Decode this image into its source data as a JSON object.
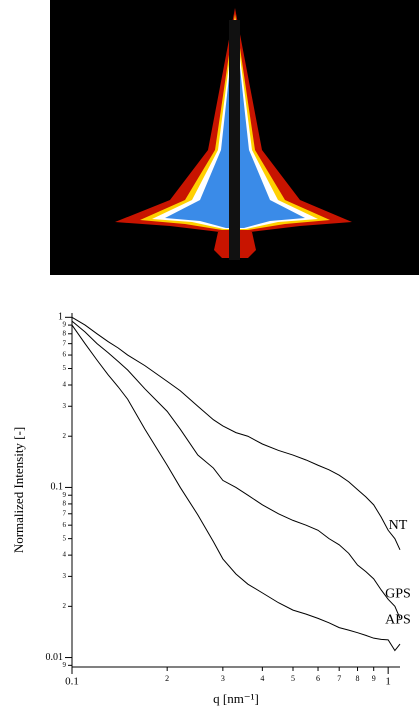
{
  "chart_data": {
    "type": "line",
    "log_x": true,
    "log_y": true,
    "x_label": "q  [nm⁻¹]",
    "y_label": "Normalized Intensity  [-]",
    "x": [
      0.1,
      0.11,
      0.12,
      0.13,
      0.14,
      0.15,
      0.17,
      0.2,
      0.22,
      0.25,
      0.28,
      0.3,
      0.33,
      0.36,
      0.4,
      0.45,
      0.5,
      0.55,
      0.6,
      0.65,
      0.7,
      0.75,
      0.8,
      0.85,
      0.9,
      0.95,
      1.0,
      1.05,
      1.09
    ],
    "series": [
      {
        "name": "NT",
        "color": "#000000",
        "values": [
          1.0,
          0.9,
          0.8,
          0.72,
          0.66,
          0.6,
          0.52,
          0.42,
          0.37,
          0.3,
          0.25,
          0.23,
          0.21,
          0.2,
          0.18,
          0.165,
          0.155,
          0.145,
          0.135,
          0.127,
          0.118,
          0.108,
          0.097,
          0.088,
          0.079,
          0.067,
          0.056,
          0.05,
          0.043
        ]
      },
      {
        "name": "GPS",
        "color": "#000000",
        "values": [
          0.95,
          0.82,
          0.7,
          0.62,
          0.55,
          0.49,
          0.38,
          0.28,
          0.22,
          0.155,
          0.13,
          0.11,
          0.1,
          0.09,
          0.079,
          0.07,
          0.064,
          0.06,
          0.056,
          0.05,
          0.046,
          0.041,
          0.035,
          0.032,
          0.029,
          0.025,
          0.022,
          0.02,
          0.017
        ]
      },
      {
        "name": "APS",
        "color": "#000000",
        "values": [
          0.9,
          0.7,
          0.56,
          0.46,
          0.39,
          0.33,
          0.22,
          0.135,
          0.1,
          0.069,
          0.048,
          0.038,
          0.031,
          0.027,
          0.024,
          0.021,
          0.019,
          0.018,
          0.017,
          0.016,
          0.015,
          0.0145,
          0.014,
          0.0135,
          0.013,
          0.0128,
          0.0127,
          0.011,
          0.012
        ]
      }
    ],
    "xlim": [
      0.1,
      1.09
    ],
    "xticks": [
      0.1,
      {
        "value": 0.2,
        "label": "2"
      },
      {
        "value": 0.3,
        "label": "3"
      },
      {
        "value": 0.4,
        "label": "4"
      },
      {
        "value": 0.5,
        "label": "5"
      },
      {
        "value": 0.6,
        "label": "6"
      },
      {
        "value": 0.7,
        "label": "7"
      },
      {
        "value": 0.8,
        "label": "8"
      },
      {
        "value": 0.9,
        "label": "9"
      },
      1
    ],
    "ylim": [
      0.0088,
      1.06
    ],
    "yticks": [
      1,
      {
        "value": 0.9,
        "label": "9"
      },
      {
        "value": 0.8,
        "label": "8"
      },
      {
        "value": 0.7,
        "label": "7"
      },
      {
        "value": 0.6,
        "label": "6"
      },
      {
        "value": 0.5,
        "label": "5"
      },
      {
        "value": 0.4,
        "label": "4"
      },
      {
        "value": 0.3,
        "label": "3"
      },
      {
        "value": 0.2,
        "label": "2"
      },
      0.1,
      {
        "value": 0.09,
        "label": "9"
      },
      {
        "value": 0.08,
        "label": "8"
      },
      {
        "value": 0.07,
        "label": "7"
      },
      {
        "value": 0.06,
        "label": "6"
      },
      {
        "value": 0.05,
        "label": "5"
      },
      {
        "value": 0.04,
        "label": "4"
      },
      {
        "value": 0.03,
        "label": "3"
      },
      {
        "value": 0.02,
        "label": "2"
      },
      0.01,
      {
        "value": 0.009,
        "label": "9"
      }
    ]
  }
}
